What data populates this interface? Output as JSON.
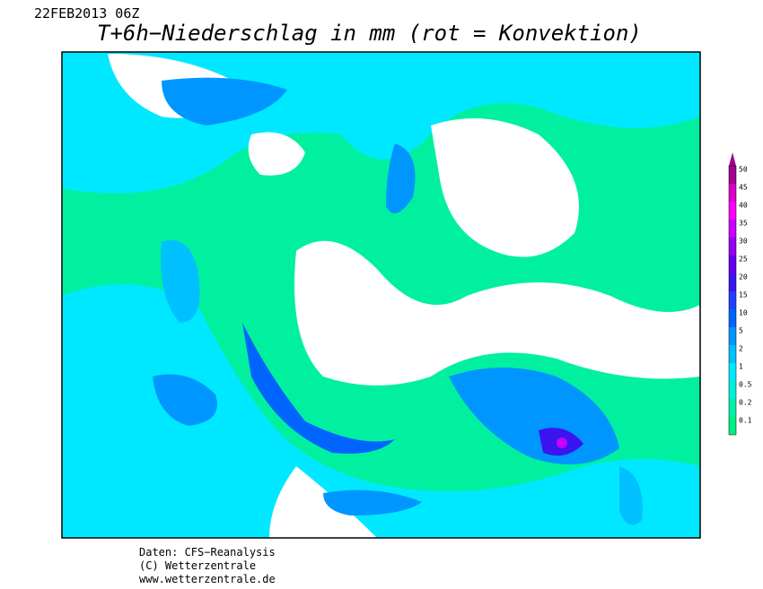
{
  "header": {
    "date": "22FEB2013 06Z",
    "title": "T+6h−Niederschlag in mm (rot = Konvektion)"
  },
  "legend": {
    "levels": [
      {
        "value": 0.1,
        "color": "#00f080"
      },
      {
        "value": 0.2,
        "color": "#00f0a8"
      },
      {
        "value": 0.5,
        "color": "#00f0d8"
      },
      {
        "value": 1,
        "color": "#00e8ff"
      },
      {
        "value": 2,
        "color": "#00c0ff"
      },
      {
        "value": 5,
        "color": "#0096ff"
      },
      {
        "value": 10,
        "color": "#0064ff"
      },
      {
        "value": 15,
        "color": "#2040ff"
      },
      {
        "value": 20,
        "color": "#3c14f0"
      },
      {
        "value": 25,
        "color": "#6400f0"
      },
      {
        "value": 30,
        "color": "#9600f0"
      },
      {
        "value": 35,
        "color": "#c800ff"
      },
      {
        "value": 40,
        "color": "#ff00ff"
      },
      {
        "value": 45,
        "color": "#d800c8"
      },
      {
        "value": 50,
        "color": "#a00090"
      }
    ]
  },
  "footer": {
    "lines": [
      "Daten: CFS−Reanalysis",
      "(C) Wetterzentrale",
      "www.wetterzentrale.de"
    ]
  }
}
